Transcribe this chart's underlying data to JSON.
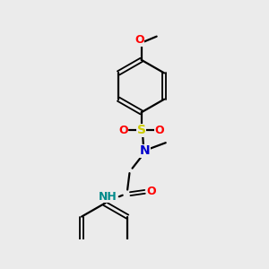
{
  "background_color": "#ebebeb",
  "bond_color": "#000000",
  "atom_colors": {
    "O": "#ff0000",
    "S": "#cccc00",
    "N_blue": "#0000cc",
    "N_teal": "#008b8b",
    "C": "#000000"
  },
  "figsize": [
    3.0,
    3.0
  ],
  "dpi": 100
}
